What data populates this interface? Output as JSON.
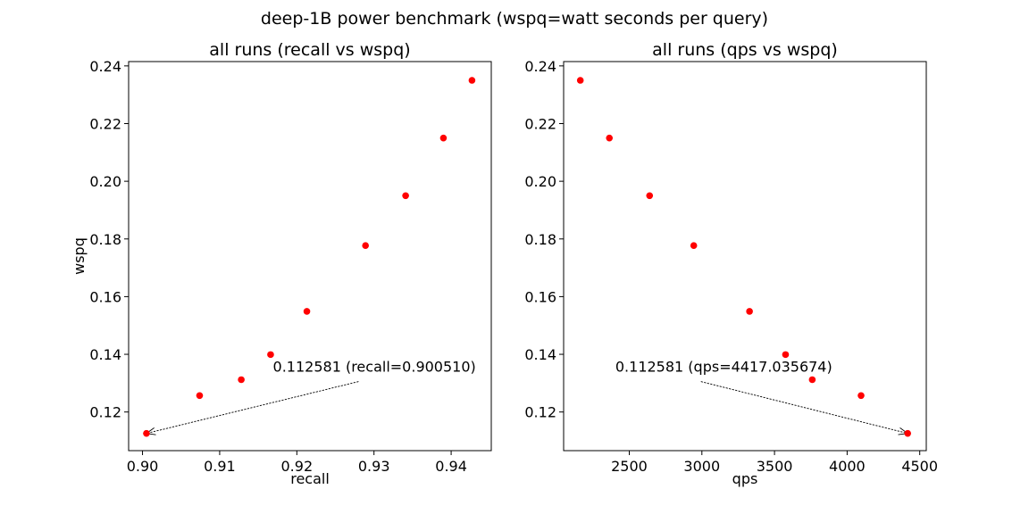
{
  "figure": {
    "suptitle": "deep-1B power benchmark (wspq=watt seconds per query)"
  },
  "colors": {
    "points": "#ff0000",
    "axes": "#000000",
    "background": "#ffffff"
  },
  "chart_data": [
    {
      "type": "scatter",
      "title": "all runs (recall vs wspq)",
      "xlabel": "recall",
      "ylabel": "wspq",
      "xlim": [
        0.8982,
        0.9452
      ],
      "ylim": [
        0.1066,
        0.2415
      ],
      "xticks": [
        0.9,
        0.91,
        0.92,
        0.93,
        0.94
      ],
      "xtick_labels": [
        "0.90",
        "0.91",
        "0.92",
        "0.93",
        "0.94"
      ],
      "yticks": [
        0.12,
        0.14,
        0.16,
        0.18,
        0.2,
        0.22,
        0.24
      ],
      "ytick_labels": [
        "0.12",
        "0.14",
        "0.16",
        "0.18",
        "0.20",
        "0.22",
        "0.24"
      ],
      "grid": false,
      "points": [
        {
          "x": 0.90051,
          "y": 0.112581
        },
        {
          "x": 0.9074,
          "y": 0.1257
        },
        {
          "x": 0.9128,
          "y": 0.1312
        },
        {
          "x": 0.9166,
          "y": 0.1399
        },
        {
          "x": 0.9213,
          "y": 0.1549
        },
        {
          "x": 0.9289,
          "y": 0.1777
        },
        {
          "x": 0.9341,
          "y": 0.195
        },
        {
          "x": 0.939,
          "y": 0.215
        },
        {
          "x": 0.9427,
          "y": 0.235
        }
      ],
      "annotation": {
        "text": "0.112581 (recall=0.900510)",
        "x": 0.90051,
        "y": 0.112581,
        "text_x": 0.9169,
        "text_y": 0.1324
      }
    },
    {
      "type": "scatter",
      "title": "all runs (qps vs wspq)",
      "xlabel": "qps",
      "ylabel": "",
      "xlim": [
        2048,
        4545
      ],
      "ylim": [
        0.1066,
        0.2415
      ],
      "xticks": [
        2500,
        3000,
        3500,
        4000,
        4500
      ],
      "xtick_labels": [
        "2500",
        "3000",
        "3500",
        "4000",
        "4500"
      ],
      "yticks": [
        0.12,
        0.14,
        0.16,
        0.18,
        0.2,
        0.22,
        0.24
      ],
      "ytick_labels": [
        "0.12",
        "0.14",
        "0.16",
        "0.18",
        "0.20",
        "0.22",
        "0.24"
      ],
      "grid": false,
      "points": [
        {
          "x": 2163,
          "y": 0.235
        },
        {
          "x": 2363,
          "y": 0.215
        },
        {
          "x": 2640,
          "y": 0.195
        },
        {
          "x": 2944,
          "y": 0.1777
        },
        {
          "x": 3328,
          "y": 0.1549
        },
        {
          "x": 3576,
          "y": 0.1399
        },
        {
          "x": 3760,
          "y": 0.1312
        },
        {
          "x": 4096,
          "y": 0.1257
        },
        {
          "x": 4417.035674,
          "y": 0.112581
        }
      ],
      "annotation": {
        "text": "0.112581 (qps=4417.035674)",
        "x": 4417.035674,
        "y": 0.112581,
        "text_x": 2404,
        "text_y": 0.1324
      }
    }
  ]
}
